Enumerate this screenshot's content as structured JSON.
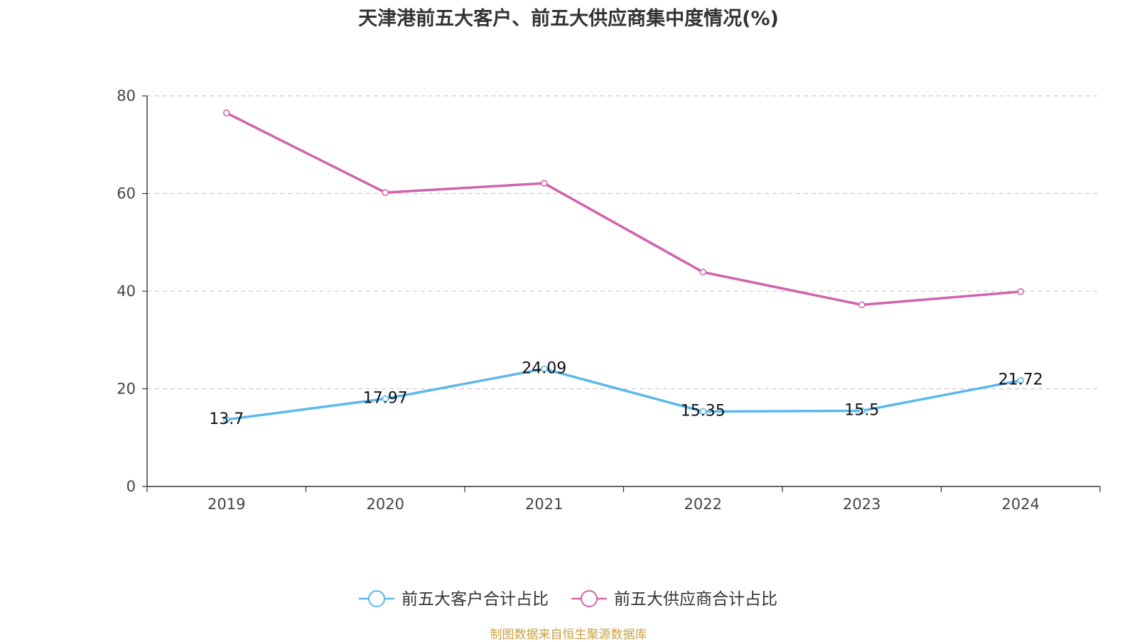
{
  "chart_data": {
    "type": "line",
    "title": "天津港前五大客户、前五大供应商集中度情况(%)",
    "categories": [
      "2019",
      "2020",
      "2021",
      "2022",
      "2023",
      "2024"
    ],
    "series": [
      {
        "name": "前五大客户合计占比",
        "color": "#5bb8ec",
        "values": [
          13.7,
          17.97,
          24.09,
          15.35,
          15.5,
          21.72
        ],
        "data_labels": [
          "13.7",
          "17.97",
          "24.09",
          "15.35",
          "15.5",
          "21.72"
        ]
      },
      {
        "name": "前五大供应商合计占比",
        "color": "#d063ad",
        "values": [
          76.5,
          60.2,
          62.1,
          43.9,
          37.2,
          39.9
        ]
      }
    ],
    "ylim": [
      0,
      80
    ],
    "yticks": [
      0,
      20,
      40,
      60,
      80
    ],
    "grid": "horizontal-dashed",
    "legend": "bottom-center",
    "xlabel": "",
    "ylabel": ""
  },
  "source_note": "制图数据来自恒生聚源数据库",
  "colors": {
    "axis": "#333333",
    "grid": "#cccccc",
    "source_note": "#c8a044"
  }
}
